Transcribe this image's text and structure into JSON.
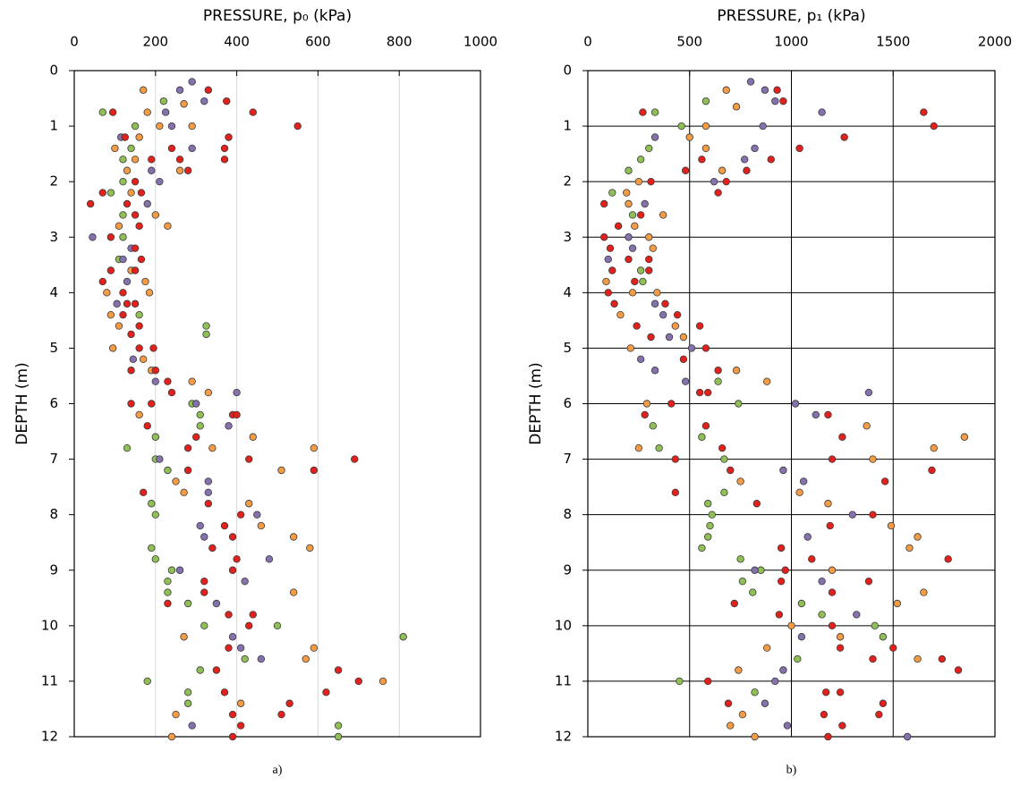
{
  "chart_data": [
    {
      "type": "scatter",
      "x_label": "PRESSURE, p₀ (kPa)",
      "y_label": "DEPTH (m)",
      "caption": "a)",
      "xlim": [
        0,
        1000
      ],
      "xticks": [
        0,
        200,
        400,
        600,
        800,
        1000
      ],
      "ylim": [
        0,
        12
      ],
      "yticks": [
        0,
        1,
        2,
        3,
        4,
        5,
        6,
        7,
        8,
        9,
        10,
        11,
        12
      ],
      "y_reversed": true,
      "x_axis_position": "top",
      "grid": "x",
      "grid_color": "#d9d9d9",
      "series": [
        {
          "color": "#8fbf55",
          "x": [
            220,
            70,
            150,
            140,
            120,
            120,
            90,
            120,
            120,
            110,
            160,
            325,
            325,
            290,
            310,
            310,
            200,
            130,
            200,
            230,
            190,
            200,
            190,
            200,
            240,
            230,
            230,
            280,
            320,
            500,
            810,
            420,
            310,
            180,
            280,
            280,
            650,
            650
          ],
          "values": [
            0.55,
            0.75,
            1.0,
            1.4,
            1.6,
            2.0,
            2.2,
            2.6,
            3.0,
            3.4,
            4.4,
            4.6,
            4.75,
            6.0,
            6.2,
            6.4,
            6.6,
            6.8,
            7.0,
            7.2,
            7.8,
            8.0,
            8.6,
            8.8,
            9.0,
            9.2,
            9.4,
            9.6,
            10.0,
            10.0,
            10.2,
            10.6,
            10.8,
            11.0,
            11.2,
            11.4,
            11.8,
            12.0
          ]
        },
        {
          "color": "#f39b45",
          "x": [
            170,
            270,
            180,
            210,
            290,
            160,
            100,
            150,
            130,
            260,
            140,
            200,
            110,
            230,
            140,
            175,
            80,
            185,
            90,
            110,
            95,
            170,
            190,
            290,
            330,
            160,
            440,
            340,
            590,
            510,
            250,
            270,
            430,
            460,
            540,
            580,
            540,
            270,
            590,
            570,
            760,
            410,
            250,
            240
          ],
          "values": [
            0.35,
            0.6,
            0.75,
            1.0,
            1.0,
            1.2,
            1.4,
            1.6,
            1.8,
            1.8,
            2.2,
            2.6,
            2.8,
            2.8,
            3.6,
            3.8,
            4.0,
            4.0,
            4.4,
            4.6,
            5.0,
            5.2,
            5.4,
            5.6,
            5.8,
            6.2,
            6.6,
            6.8,
            6.8,
            7.2,
            7.4,
            7.6,
            7.8,
            8.2,
            8.4,
            8.6,
            9.4,
            10.2,
            10.4,
            10.6,
            11.0,
            11.4,
            11.6,
            12.0
          ]
        },
        {
          "color": "#8571ae",
          "x": [
            290,
            260,
            320,
            225,
            240,
            115,
            290,
            190,
            210,
            180,
            45,
            140,
            120,
            130,
            105,
            145,
            200,
            400,
            300,
            380,
            210,
            330,
            330,
            450,
            310,
            320,
            480,
            260,
            420,
            350,
            390,
            410,
            460,
            290
          ],
          "values": [
            0.2,
            0.35,
            0.55,
            0.75,
            1.0,
            1.2,
            1.4,
            1.8,
            2.0,
            2.4,
            3.0,
            3.2,
            3.4,
            3.8,
            4.2,
            5.2,
            5.6,
            5.8,
            6.0,
            6.4,
            7.0,
            7.4,
            7.6,
            8.0,
            8.2,
            8.4,
            8.8,
            9.0,
            9.2,
            9.6,
            10.2,
            10.4,
            10.6,
            11.8
          ]
        },
        {
          "color": "#e3211c",
          "x": [
            330,
            375,
            440,
            95,
            550,
            125,
            380,
            240,
            370,
            190,
            260,
            370,
            280,
            150,
            70,
            165,
            40,
            130,
            150,
            160,
            90,
            150,
            165,
            90,
            150,
            70,
            120,
            130,
            150,
            120,
            160,
            140,
            160,
            195,
            200,
            140,
            230,
            240,
            140,
            190,
            390,
            400,
            180,
            300,
            280,
            430,
            690,
            280,
            590,
            170,
            330,
            410,
            370,
            390,
            340,
            400,
            390,
            320,
            320,
            230,
            380,
            440,
            430,
            380,
            350,
            650,
            700,
            370,
            620,
            530,
            390,
            510,
            410,
            390
          ],
          "values": [
            0.35,
            0.55,
            0.75,
            0.75,
            1.0,
            1.2,
            1.2,
            1.4,
            1.4,
            1.6,
            1.6,
            1.6,
            1.8,
            2.0,
            2.2,
            2.2,
            2.4,
            2.4,
            2.6,
            2.8,
            3.0,
            3.2,
            3.4,
            3.6,
            3.6,
            3.8,
            4.0,
            4.2,
            4.2,
            4.4,
            4.6,
            4.75,
            5.0,
            5.0,
            5.4,
            5.4,
            5.6,
            5.8,
            6.0,
            6.0,
            6.2,
            6.2,
            6.4,
            6.6,
            6.8,
            7.0,
            7.0,
            7.2,
            7.2,
            7.6,
            7.8,
            8.0,
            8.2,
            8.4,
            8.6,
            8.8,
            9.0,
            9.2,
            9.4,
            9.6,
            9.8,
            9.8,
            10.0,
            10.4,
            10.8,
            10.8,
            11.0,
            11.2,
            11.2,
            11.4,
            11.6,
            11.6,
            11.8,
            12.0
          ]
        }
      ]
    },
    {
      "type": "scatter",
      "x_label": "PRESSURE, p₁ (kPa)",
      "y_label": "DEPTH (m)",
      "caption": "b)",
      "xlim": [
        0,
        2000
      ],
      "xticks": [
        0,
        500,
        1000,
        1500,
        2000
      ],
      "ylim": [
        0,
        12
      ],
      "yticks": [
        0,
        1,
        2,
        3,
        4,
        5,
        6,
        7,
        8,
        9,
        10,
        11,
        12
      ],
      "y_reversed": true,
      "x_axis_position": "top",
      "grid": "both",
      "grid_color": "#000000",
      "series": [
        {
          "color": "#8fbf55",
          "x": [
            580,
            330,
            460,
            300,
            260,
            200,
            120,
            220,
            260,
            270,
            640,
            740,
            320,
            560,
            350,
            670,
            670,
            590,
            610,
            600,
            590,
            560,
            750,
            850,
            760,
            810,
            1050,
            1150,
            1410,
            1450,
            1030,
            450,
            820
          ],
          "values": [
            0.55,
            0.75,
            1.0,
            1.4,
            1.6,
            1.8,
            2.2,
            2.6,
            3.6,
            3.8,
            5.6,
            6.0,
            6.4,
            6.6,
            6.8,
            7.0,
            7.6,
            7.8,
            8.0,
            8.2,
            8.4,
            8.6,
            8.8,
            9.0,
            9.2,
            9.4,
            9.6,
            9.8,
            10.0,
            10.2,
            10.6,
            11.0,
            11.2
          ]
        },
        {
          "color": "#f39b45",
          "x": [
            680,
            730,
            580,
            500,
            580,
            660,
            250,
            190,
            200,
            370,
            230,
            300,
            320,
            90,
            220,
            340,
            160,
            430,
            470,
            210,
            730,
            880,
            290,
            1370,
            1850,
            250,
            1700,
            1400,
            750,
            1040,
            1180,
            1490,
            1620,
            1580,
            1200,
            1650,
            1520,
            1000,
            1240,
            880,
            1620,
            740,
            760,
            700,
            820
          ],
          "values": [
            0.35,
            0.65,
            1.0,
            1.2,
            1.4,
            1.8,
            2.0,
            2.2,
            2.4,
            2.6,
            2.8,
            3.0,
            3.2,
            3.8,
            4.0,
            4.0,
            4.4,
            4.6,
            4.8,
            5.0,
            5.4,
            5.6,
            6.0,
            6.4,
            6.6,
            6.8,
            6.8,
            7.0,
            7.4,
            7.6,
            7.8,
            8.2,
            8.4,
            8.6,
            9.0,
            9.4,
            9.6,
            10.0,
            10.2,
            10.4,
            10.6,
            10.8,
            11.6,
            11.8,
            12.0
          ]
        },
        {
          "color": "#8571ae",
          "x": [
            800,
            870,
            920,
            1150,
            860,
            330,
            820,
            770,
            620,
            280,
            200,
            220,
            100,
            330,
            370,
            400,
            510,
            260,
            330,
            480,
            1380,
            1020,
            1120,
            960,
            1060,
            1300,
            1080,
            820,
            1150,
            1320,
            1050,
            960,
            920,
            870,
            980,
            1570
          ],
          "values": [
            0.2,
            0.35,
            0.55,
            0.75,
            1.0,
            1.2,
            1.4,
            1.6,
            2.0,
            2.4,
            3.0,
            3.2,
            3.4,
            4.2,
            4.4,
            4.8,
            5.0,
            5.2,
            5.4,
            5.6,
            5.8,
            6.0,
            6.2,
            7.2,
            7.4,
            8.0,
            8.4,
            9.0,
            9.2,
            9.8,
            10.2,
            10.8,
            11.0,
            11.4,
            11.8,
            12.0
          ]
        },
        {
          "color": "#e3211c",
          "x": [
            930,
            960,
            270,
            1650,
            1700,
            1260,
            1040,
            560,
            900,
            480,
            780,
            310,
            680,
            640,
            80,
            260,
            150,
            80,
            110,
            200,
            300,
            120,
            300,
            230,
            100,
            130,
            380,
            440,
            240,
            550,
            310,
            580,
            470,
            640,
            550,
            590,
            410,
            280,
            1180,
            580,
            1250,
            660,
            430,
            1200,
            700,
            1690,
            1460,
            430,
            830,
            1400,
            1190,
            950,
            1100,
            1770,
            970,
            950,
            1380,
            1200,
            720,
            940,
            1200,
            1240,
            1500,
            1400,
            1740,
            1820,
            590,
            1240,
            1170,
            690,
            1450,
            1160,
            1430,
            1250,
            1180
          ],
          "values": [
            0.35,
            0.55,
            0.75,
            0.75,
            1.0,
            1.2,
            1.4,
            1.6,
            1.6,
            1.8,
            1.8,
            2.0,
            2.0,
            2.2,
            2.4,
            2.6,
            2.8,
            3.0,
            3.2,
            3.4,
            3.4,
            3.6,
            3.6,
            3.8,
            4.0,
            4.2,
            4.2,
            4.4,
            4.6,
            4.6,
            4.8,
            5.0,
            5.2,
            5.4,
            5.8,
            5.8,
            6.0,
            6.2,
            6.2,
            6.4,
            6.6,
            6.8,
            7.0,
            7.0,
            7.2,
            7.2,
            7.4,
            7.6,
            7.8,
            8.0,
            8.2,
            8.6,
            8.8,
            8.8,
            9.0,
            9.2,
            9.2,
            9.4,
            9.6,
            9.8,
            10.0,
            10.4,
            10.4,
            10.6,
            10.6,
            10.8,
            11.0,
            11.2,
            11.2,
            11.4,
            11.4,
            11.6,
            11.6,
            11.8,
            12.0
          ]
        }
      ]
    }
  ]
}
